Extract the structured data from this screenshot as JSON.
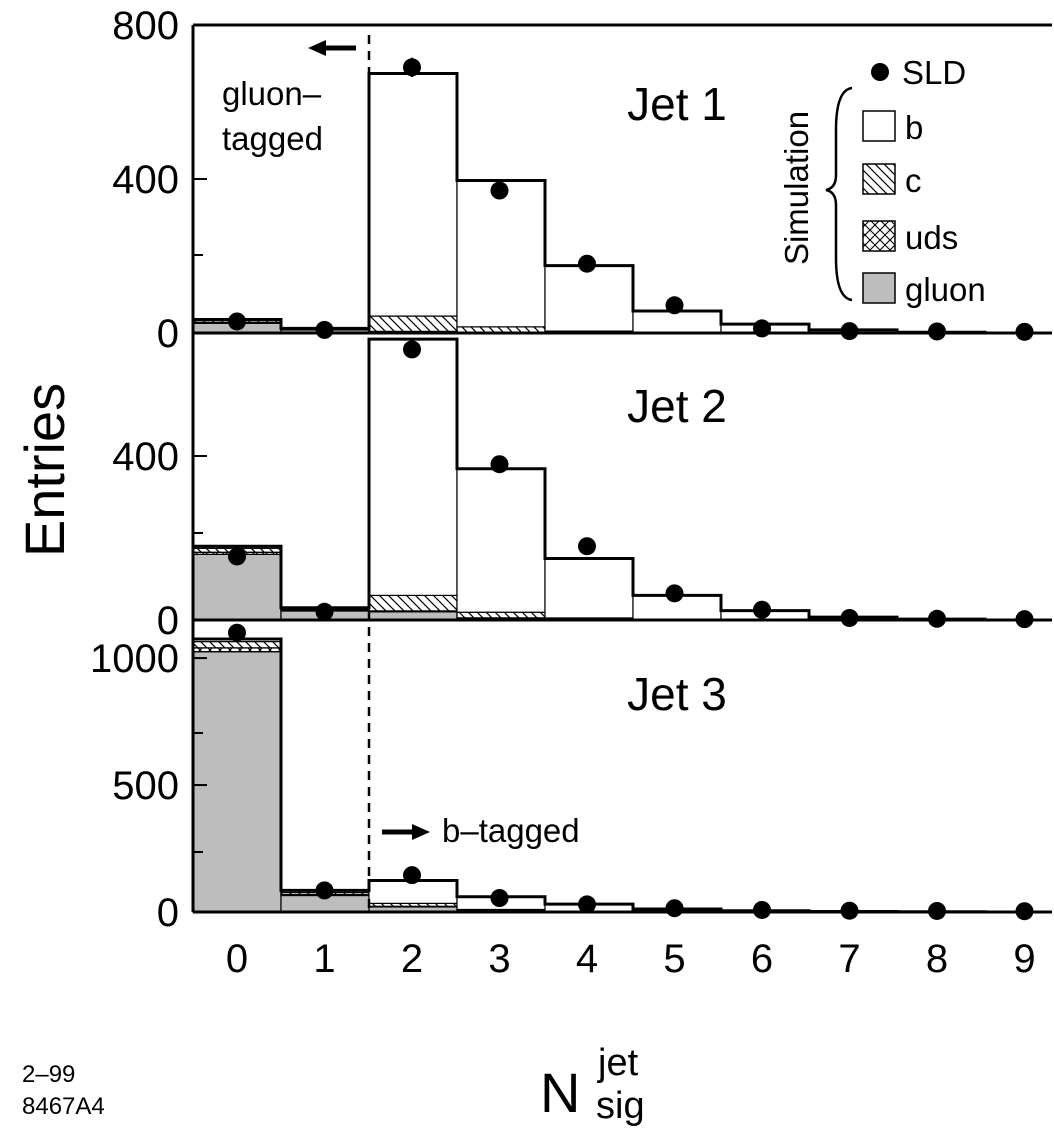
{
  "chart_data": [
    {
      "panel": "Jet 1",
      "type": "bar",
      "title": "Jet 1",
      "categories": [
        "0",
        "1",
        "2",
        "3",
        "4",
        "5",
        "6",
        "7",
        "8",
        "9"
      ],
      "ylim": [
        0,
        800
      ],
      "yticks": [
        0,
        400,
        800
      ],
      "tick_labels": [
        "0",
        "400",
        "800"
      ],
      "series": [
        {
          "name": "SLD",
          "values": [
            30,
            8,
            690,
            370,
            180,
            72,
            12,
            5,
            4,
            3
          ],
          "errors": [
            0,
            0,
            25,
            0,
            0,
            0,
            0,
            0,
            0,
            0
          ]
        },
        {
          "name": "b",
          "values": [
            2,
            1,
            630,
            380,
            170,
            55,
            22,
            8,
            2,
            0
          ]
        },
        {
          "name": "c",
          "values": [
            5,
            2,
            40,
            14,
            5,
            2,
            1,
            0,
            0,
            0
          ]
        },
        {
          "name": "uds",
          "values": [
            3,
            1,
            2,
            1,
            0,
            0,
            0,
            0,
            0,
            0
          ]
        },
        {
          "name": "gluon",
          "values": [
            25,
            8,
            2,
            1,
            0,
            0,
            0,
            0,
            0,
            0
          ]
        }
      ]
    },
    {
      "panel": "Jet 2",
      "type": "bar",
      "title": "Jet 2",
      "categories": [
        "0",
        "1",
        "2",
        "3",
        "4",
        "5",
        "6",
        "7",
        "8",
        "9"
      ],
      "ylim": [
        0,
        700
      ],
      "yticks": [
        0,
        400
      ],
      "tick_labels": [
        "0",
        "400"
      ],
      "series": [
        {
          "name": "SLD",
          "values": [
            155,
            20,
            660,
            380,
            180,
            65,
            25,
            5,
            3,
            2
          ],
          "errors": [
            0,
            0,
            20,
            15,
            0,
            0,
            0,
            0,
            0,
            0
          ]
        },
        {
          "name": "b",
          "values": [
            5,
            3,
            625,
            350,
            145,
            58,
            22,
            7,
            2,
            0
          ]
        },
        {
          "name": "c",
          "values": [
            10,
            3,
            38,
            14,
            5,
            2,
            1,
            0,
            0,
            0
          ]
        },
        {
          "name": "uds",
          "values": [
            5,
            2,
            2,
            1,
            0,
            0,
            0,
            0,
            0,
            0
          ]
        },
        {
          "name": "gluon",
          "values": [
            160,
            22,
            20,
            4,
            0,
            0,
            0,
            0,
            0,
            0
          ]
        }
      ]
    },
    {
      "panel": "Jet 3",
      "type": "bar",
      "title": "Jet 3",
      "categories": [
        "0",
        "1",
        "2",
        "3",
        "4",
        "5",
        "6",
        "7",
        "8",
        "9"
      ],
      "ylim": [
        0,
        1150
      ],
      "yticks": [
        0,
        500,
        1000
      ],
      "tick_labels": [
        "0",
        "500",
        "1000"
      ],
      "series": [
        {
          "name": "SLD",
          "values": [
            1100,
            85,
            145,
            55,
            30,
            15,
            8,
            5,
            4,
            3
          ]
        },
        {
          "name": "b",
          "values": [
            10,
            8,
            90,
            50,
            28,
            12,
            5,
            2,
            1,
            0
          ]
        },
        {
          "name": "c",
          "values": [
            25,
            8,
            12,
            4,
            2,
            0,
            0,
            0,
            0,
            0
          ]
        },
        {
          "name": "uds",
          "values": [
            15,
            4,
            2,
            1,
            0,
            0,
            0,
            0,
            0,
            0
          ]
        },
        {
          "name": "gluon",
          "values": [
            1025,
            65,
            20,
            5,
            1,
            0,
            0,
            0,
            0,
            0
          ]
        }
      ]
    }
  ],
  "axes": {
    "ylabel": "Entries",
    "xlabel_main": "N",
    "xlabel_sup": "jet",
    "xlabel_sub": "sig",
    "cut_position": 1.5
  },
  "annotations": {
    "gluon_tag_line1": "gluon–",
    "gluon_tag_line2": "tagged",
    "b_tag": "b–tagged",
    "simulation": "Simulation",
    "fig_code_line1": "2–99",
    "fig_code_line2": "8467A4"
  },
  "legend": {
    "placement": "top-right",
    "entries": [
      {
        "label": "SLD",
        "marker": "filled-circle"
      },
      {
        "label": "b",
        "marker": "open-box"
      },
      {
        "label": "c",
        "marker": "hatched-box"
      },
      {
        "label": "uds",
        "marker": "cross-hatched-box"
      },
      {
        "label": "gluon",
        "marker": "gray-box"
      }
    ]
  },
  "colors": {
    "gluon_fill": "#bdbdbd",
    "line": "#000000",
    "background": "#ffffff"
  }
}
